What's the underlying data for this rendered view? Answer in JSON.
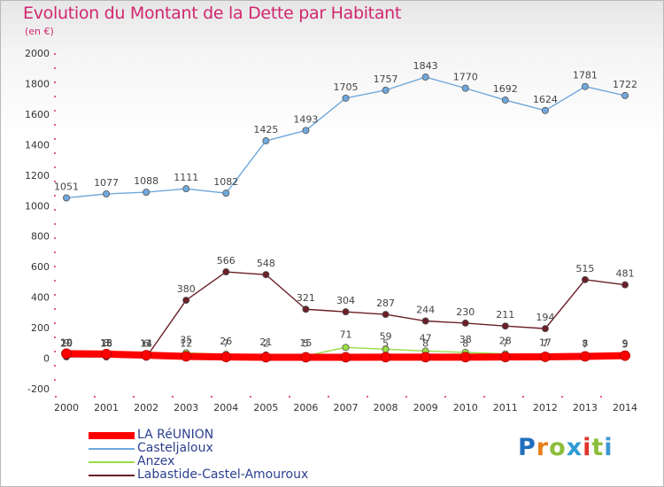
{
  "title": "Evolution du Montant de la Dette par Habitant",
  "subtitle": "(en €)",
  "chart_data": {
    "type": "line",
    "title": "Evolution du Montant de la Dette par Habitant",
    "subtitle": "(en €)",
    "xlabel": "",
    "ylabel": "",
    "categories": [
      "2000",
      "2001",
      "2002",
      "2003",
      "2004",
      "2005",
      "2006",
      "2007",
      "2008",
      "2009",
      "2010",
      "2011",
      "2012",
      "2013",
      "2014"
    ],
    "ylim": [
      -200,
      2000
    ],
    "yticks": [
      -200,
      0,
      200,
      400,
      600,
      800,
      1000,
      1200,
      1400,
      1600,
      1800,
      2000
    ],
    "grid": false,
    "legend_position": "bottom-left",
    "series": [
      {
        "name": "LA RéUNION",
        "color": "#ff0000",
        "values": [
          30,
          27,
          20,
          12,
          8,
          6,
          6,
          6,
          7,
          7,
          7,
          8,
          9,
          12,
          17
        ],
        "labels": [],
        "emphasis": true
      },
      {
        "name": "Casteljaloux",
        "color": "#6fa8dc",
        "values": [
          1051,
          1077,
          1088,
          1111,
          1082,
          1425,
          1493,
          1705,
          1757,
          1843,
          1770,
          1692,
          1624,
          1781,
          1722
        ],
        "labels": [
          "1051",
          "1077",
          "1088",
          "1111",
          "1082",
          "1425",
          "1493",
          "1705",
          "1757",
          "1843",
          "1770",
          "1692",
          "1624",
          "1781",
          "1722"
        ]
      },
      {
        "name": "Anzex",
        "color": "#99dd44",
        "values": [
          19,
          15,
          11,
          35,
          26,
          21,
          15,
          71,
          59,
          47,
          38,
          28,
          17,
          7,
          5
        ],
        "labels": [
          "19",
          "15",
          "11",
          "35",
          "26",
          "21",
          "15",
          "71",
          "59",
          "47",
          "38",
          "28",
          "17",
          "7",
          "5"
        ]
      },
      {
        "name": "Labastide-Castel-Amouroux",
        "color": "#6b1f27",
        "values": [
          9,
          8,
          6,
          380,
          566,
          548,
          321,
          304,
          287,
          244,
          230,
          211,
          194,
          515,
          481
        ],
        "labels": [
          "9",
          "8",
          "6",
          "380",
          "566",
          "548",
          "321",
          "304",
          "287",
          "244",
          "230",
          "211",
          "194",
          "515",
          "481"
        ]
      }
    ],
    "extra_labels": [
      {
        "index": 0,
        "text": "20"
      },
      {
        "index": 1,
        "text": "18"
      },
      {
        "index": 2,
        "text": "14"
      },
      {
        "index": 3,
        "text": "12"
      },
      {
        "index": 4,
        "text": "7"
      },
      {
        "index": 5,
        "text": "2"
      },
      {
        "index": 6,
        "text": "5"
      },
      {
        "index": 8,
        "text": "5"
      },
      {
        "index": 9,
        "text": "8"
      },
      {
        "index": 10,
        "text": "8"
      },
      {
        "index": 11,
        "text": "7"
      },
      {
        "index": 12,
        "text": "7"
      },
      {
        "index": 13,
        "text": "8"
      },
      {
        "index": 14,
        "text": "9"
      }
    ]
  },
  "legend": [
    {
      "label": "LA RéUNION",
      "color": "#ff0000"
    },
    {
      "label": "Casteljaloux",
      "color": "#6fa8dc"
    },
    {
      "label": "Anzex",
      "color": "#99dd44"
    },
    {
      "label": "Labastide-Castel-Amouroux",
      "color": "#6b1f27"
    }
  ],
  "logo": {
    "letters": [
      "P",
      "r",
      "o",
      "x",
      "i",
      "t",
      "i"
    ],
    "colors": [
      "#1f6fbd",
      "#e8801b",
      "#8cbd3b",
      "#2f9bd6",
      "#e2352c",
      "#8cbd3b",
      "#3e96d2"
    ]
  }
}
